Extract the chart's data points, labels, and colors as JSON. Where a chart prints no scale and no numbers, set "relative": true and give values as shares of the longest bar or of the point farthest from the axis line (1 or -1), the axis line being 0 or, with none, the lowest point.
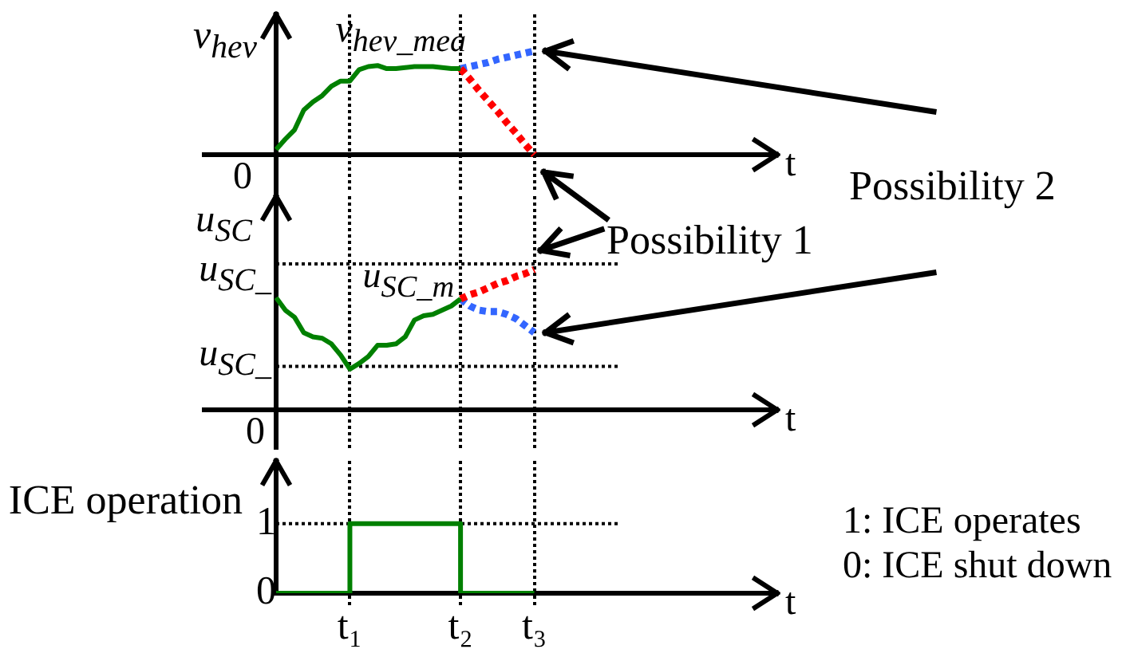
{
  "chart_data": [
    {
      "type": "line",
      "ylabel": "v$_{hev}$",
      "xlabel": "t",
      "relative": true,
      "grid": "x",
      "tick_labels": false,
      "marker": "none",
      "categories": [
        null,
        null,
        null,
        null,
        null,
        null,
        null,
        null,
        "t₁",
        null,
        null,
        null,
        null,
        null,
        null,
        null,
        null,
        null,
        null,
        null,
        "t₂",
        null,
        null,
        null,
        null,
        null,
        null,
        null,
        "t₃",
        null,
        null,
        null,
        null,
        null,
        null,
        null,
        null,
        null,
        null,
        null,
        null,
        null,
        null,
        null,
        null,
        null,
        null,
        null,
        null,
        null,
        null,
        null,
        null,
        null,
        null
      ],
      "series": [
        {
          "color": "#008000",
          "values": [
            0.05,
            0.15,
            0.24,
            0.43,
            0.51,
            0.57,
            0.66,
            0.71,
            0.71,
            0.82,
            0.85,
            0.86,
            0.83,
            0.83,
            0.84,
            0.85,
            0.85,
            0.85,
            0.84,
            0.83,
            0.83,
            null,
            null,
            null,
            null,
            null,
            null,
            null,
            null,
            null,
            null,
            null,
            null,
            null,
            null,
            null,
            null,
            null,
            null,
            null,
            null,
            null,
            null,
            null,
            null,
            null,
            null,
            null,
            null,
            null,
            null,
            null,
            null,
            null,
            null
          ]
        },
        {
          "color": "#ff0000",
          "line_style": "dotted",
          "values": [
            null,
            null,
            null,
            null,
            null,
            null,
            null,
            null,
            null,
            null,
            null,
            null,
            null,
            null,
            null,
            null,
            null,
            null,
            null,
            null,
            0.83,
            0.73,
            0.62,
            0.52,
            0.42,
            0.31,
            0.21,
            0.1,
            0,
            null,
            null,
            null,
            null,
            null,
            null,
            null,
            null,
            null,
            null,
            null,
            null,
            null,
            null,
            null,
            null,
            null,
            null,
            null,
            null,
            null,
            null,
            null,
            null,
            null,
            null
          ]
        },
        {
          "color": "#3366ff",
          "line_style": "dotted",
          "values": [
            null,
            null,
            null,
            null,
            null,
            null,
            null,
            null,
            null,
            null,
            null,
            null,
            null,
            null,
            null,
            null,
            null,
            null,
            null,
            null,
            0.83,
            0.85,
            0.87,
            0.89,
            0.92,
            0.94,
            0.96,
            0.98,
            1,
            null,
            null,
            null,
            null,
            null,
            null,
            null,
            null,
            null,
            null,
            null,
            null,
            null,
            null,
            null,
            null,
            null,
            null,
            null,
            null,
            null,
            null,
            null,
            null,
            null,
            null
          ]
        }
      ],
      "annotations": [
        "0",
        {
          "text": "v$_{hev_mea}$",
          "x": "t₁",
          "y": 0.83
        }
      ]
    },
    {
      "type": "line",
      "ylabel": "u$_{SC}$",
      "xlabel": "t",
      "relative": true,
      "grid": "x",
      "tick_labels": false,
      "marker": "none",
      "categories": [
        null,
        null,
        null,
        null,
        null,
        null,
        null,
        null,
        "t₁",
        null,
        null,
        null,
        null,
        null,
        null,
        null,
        null,
        null,
        null,
        null,
        "t₂",
        null,
        null,
        null,
        null,
        null,
        null,
        null,
        "t₃",
        null,
        null,
        null,
        null,
        null,
        null,
        null,
        null,
        null,
        null,
        null,
        null,
        null,
        null,
        null,
        null,
        null,
        null,
        null,
        null,
        null,
        null,
        null,
        null,
        null,
        null
      ],
      "series": [
        {
          "color": "#008000",
          "values": [
            0.8,
            0.71,
            0.66,
            0.55,
            0.52,
            0.51,
            0.47,
            0.39,
            0.29,
            0.33,
            0.38,
            0.46,
            0.46,
            0.47,
            0.52,
            0.64,
            0.67,
            0.68,
            0.71,
            0.74,
            0.79,
            null,
            null,
            null,
            null,
            null,
            null,
            null,
            null,
            null,
            null,
            null,
            null,
            null,
            null,
            null,
            null,
            null,
            null,
            null,
            null,
            null,
            null,
            null,
            null,
            null,
            null,
            null,
            null,
            null,
            null,
            null,
            null,
            null,
            null
          ]
        },
        {
          "color": "#ff0000",
          "line_style": "dotted",
          "values": [
            null,
            null,
            null,
            null,
            null,
            null,
            null,
            null,
            null,
            null,
            null,
            null,
            null,
            null,
            null,
            null,
            null,
            null,
            null,
            null,
            0.79,
            0.82,
            0.84,
            0.87,
            0.9,
            0.92,
            0.95,
            0.97,
            1,
            null,
            null,
            null,
            null,
            null,
            null,
            null,
            null,
            null,
            null,
            null,
            null,
            null,
            null,
            null,
            null,
            null,
            null,
            null,
            null,
            null,
            null,
            null,
            null,
            null,
            null
          ]
        },
        {
          "color": "#3366ff",
          "line_style": "dotted",
          "values": [
            null,
            null,
            null,
            null,
            null,
            null,
            null,
            null,
            null,
            null,
            null,
            null,
            null,
            null,
            null,
            null,
            null,
            null,
            null,
            null,
            0.79,
            0.74,
            0.71,
            0.7,
            0.7,
            0.68,
            0.65,
            0.6,
            0.55,
            null,
            null,
            null,
            null,
            null,
            null,
            null,
            null,
            null,
            null,
            null,
            null,
            null,
            null,
            null,
            null,
            null,
            null,
            null,
            null,
            null,
            null,
            null,
            null,
            null,
            null
          ]
        }
      ],
      "ref_lines": [
        {
          "axis": "y",
          "value": 1.04,
          "label": "u$_{SC_}$",
          "color": "#000000",
          "line_style": "dotted"
        },
        {
          "axis": "y",
          "value": 0.31,
          "label": "u$_{SC_}$",
          "color": "#000000",
          "line_style": "dotted"
        }
      ],
      "annotations": [
        "0",
        {
          "text": "u$_{SC_m}$",
          "x": "t₂",
          "y": 0.79
        },
        "Possibility 1",
        "Possibility 2"
      ]
    },
    {
      "type": "step",
      "ylabel": "ICE operation",
      "xlabel": "t",
      "ylim": [
        0,
        1.9
      ],
      "yticks": [
        0,
        1
      ],
      "grid": "x",
      "marker": "none",
      "categories": [
        null,
        null,
        null,
        null,
        null,
        null,
        null,
        null,
        "t₁",
        null,
        null,
        null,
        null,
        null,
        null,
        null,
        null,
        null,
        null,
        null,
        "t₂",
        null,
        null,
        null,
        null,
        null,
        null,
        null,
        "t₃",
        null,
        null,
        null,
        null,
        null,
        null,
        null,
        null,
        null,
        null,
        null,
        null,
        null,
        null,
        null,
        null,
        null,
        null,
        null,
        null,
        null,
        null,
        null,
        null,
        null,
        null
      ],
      "series": [
        {
          "color": "#008000",
          "values": [
            0,
            0,
            0,
            0,
            0,
            0,
            0,
            0,
            1,
            1,
            1,
            1,
            1,
            1,
            1,
            1,
            1,
            1,
            1,
            1,
            0,
            0,
            0,
            0,
            0,
            0,
            0,
            0,
            0,
            null,
            null,
            null,
            null,
            null,
            null,
            null,
            null,
            null,
            null,
            null,
            null,
            null,
            null,
            null,
            null,
            null,
            null,
            null,
            null,
            null,
            null,
            null,
            null,
            null,
            null
          ]
        }
      ],
      "ref_lines": [
        {
          "axis": "y",
          "value": 1,
          "color": "#000000",
          "line_style": "dotted"
        }
      ],
      "annotations": [
        "1: ICE operates",
        "0: ICE shut down"
      ]
    }
  ]
}
